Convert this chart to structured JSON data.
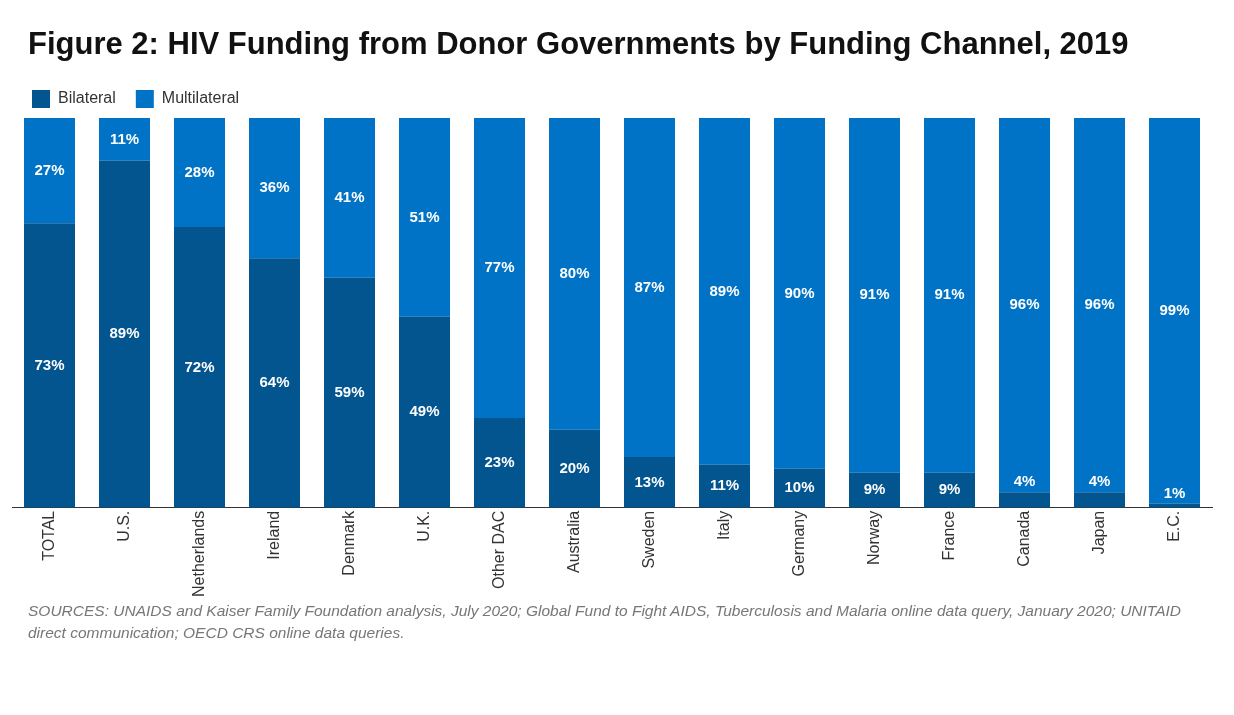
{
  "chart_data": {
    "type": "bar",
    "title": "Figure 2: HIV Funding from Donor Governments by Funding Channel, 2019",
    "categories": [
      "TOTAL",
      "U.S.",
      "Netherlands",
      "Ireland",
      "Denmark",
      "U.K.",
      "Other DAC",
      "Australia",
      "Sweden",
      "Italy",
      "Germany",
      "Norway",
      "France",
      "Canada",
      "Japan",
      "E.C."
    ],
    "stacked": true,
    "legend": "top left",
    "grid": false,
    "series": [
      {
        "name": "Bilateral",
        "color": "#03558f",
        "values": [
          73,
          89,
          72,
          64,
          59,
          49,
          23,
          20,
          13,
          11,
          10,
          9,
          9,
          4,
          4,
          1
        ],
        "value_labels": [
          "73%",
          "89%",
          "72%",
          "64%",
          "59%",
          "49%",
          "23%",
          "20%",
          "13%",
          "11%",
          "10%",
          "9%",
          "9%",
          "4%",
          "4%",
          "1%"
        ]
      },
      {
        "name": "Multilateral",
        "color": "#0073c6",
        "values": [
          27,
          11,
          28,
          36,
          41,
          51,
          77,
          80,
          87,
          89,
          90,
          91,
          91,
          96,
          96,
          99
        ],
        "value_labels": [
          "27%",
          "11%",
          "28%",
          "36%",
          "41%",
          "51%",
          "77%",
          "80%",
          "87%",
          "89%",
          "90%",
          "91%",
          "91%",
          "96%",
          "96%",
          "99%"
        ]
      }
    ],
    "annotations": [
      "SOURCES: UNAIDS and Kaiser Family Foundation analysis, July 2020; Global Fund to Fight AIDS, Tuberculosis and Malaria online data query, January 2020; UNITAID direct communication; OECD CRS online data queries."
    ]
  }
}
